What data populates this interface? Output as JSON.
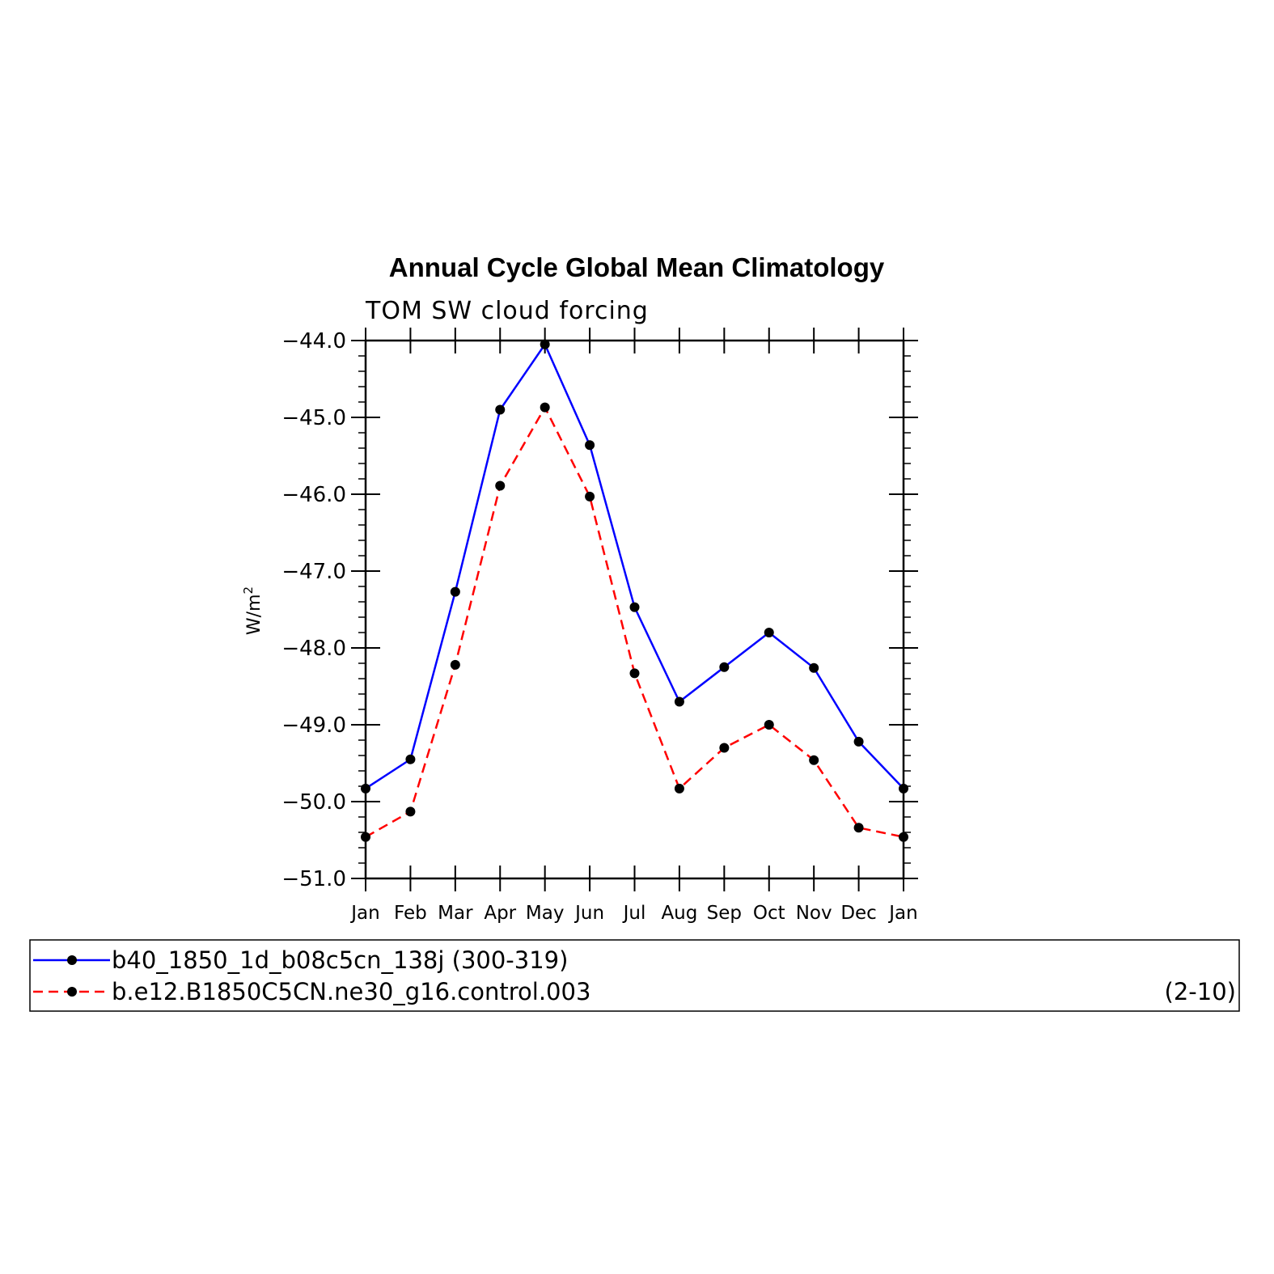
{
  "chart_data": {
    "type": "line",
    "title": "Annual Cycle Global Mean Climatology",
    "subtitle": "TOM SW cloud forcing",
    "ylabel_base": "W/m",
    "ylabel_sup": "2",
    "xlabel": "",
    "categories": [
      "Jan",
      "Feb",
      "Mar",
      "Apr",
      "May",
      "Jun",
      "Jul",
      "Aug",
      "Sep",
      "Oct",
      "Nov",
      "Dec",
      "Jan"
    ],
    "ylim": [
      -51.0,
      -44.0
    ],
    "yticks": [
      "-44.0",
      "-45.0",
      "-46.0",
      "-47.0",
      "-48.0",
      "-49.0",
      "-50.0",
      "-51.0"
    ],
    "grid": false,
    "legend_position": "bottom",
    "series": [
      {
        "name": "b40_1850_1d_b08c5cn_138j (300-319)",
        "color": "#0000ff",
        "line_style": "solid",
        "marker": "filled-circle",
        "values": [
          -49.83,
          -49.45,
          -47.27,
          -44.9,
          -44.05,
          -45.36,
          -47.47,
          -48.7,
          -48.25,
          -47.8,
          -48.26,
          -49.22,
          -49.83
        ]
      },
      {
        "name": "b.e12.B1850C5CN.ne30_g16.control.003",
        "name_suffix": "(2-10)",
        "color": "#ff0000",
        "line_style": "dashed",
        "marker": "filled-circle",
        "values": [
          -50.46,
          -50.13,
          -48.22,
          -45.89,
          -44.87,
          -46.03,
          -48.33,
          -49.83,
          -49.3,
          -49.0,
          -49.46,
          -50.34,
          -50.46
        ]
      }
    ]
  }
}
